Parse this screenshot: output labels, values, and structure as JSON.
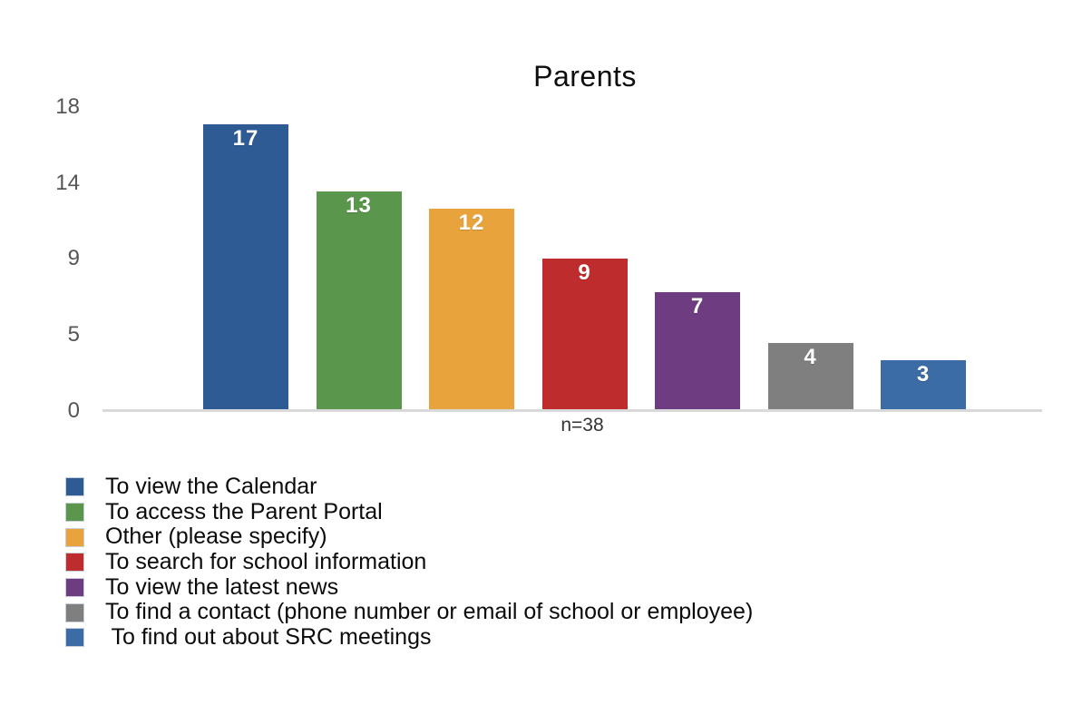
{
  "title": "Parents",
  "chart_data": {
    "type": "bar",
    "title": "Parents",
    "categories": [
      "To view the Calendar",
      "To access the Parent Portal",
      "Other (please specify)",
      "To search for school information",
      "To view the latest news",
      "To find a contact (phone number or email of school or employee)",
      " To find out about SRC meetings"
    ],
    "values": [
      17,
      13,
      12,
      9,
      7,
      4,
      3
    ],
    "colors": [
      "#2E5B94",
      "#5A964B",
      "#E8A33C",
      "#BF2C2E",
      "#6E3C80",
      "#7F7F7F",
      "#3C6CA5"
    ],
    "xlabel": "",
    "ylabel": "",
    "ylim": [
      0,
      18
    ],
    "ytick_labels": [
      "18",
      "14",
      "9",
      "5",
      "0"
    ],
    "grid": false,
    "legend_position": "bottom-left",
    "annotation": "n=38",
    "axis_line_color": "#d9d9d9",
    "tick_label_color": "#555555"
  }
}
